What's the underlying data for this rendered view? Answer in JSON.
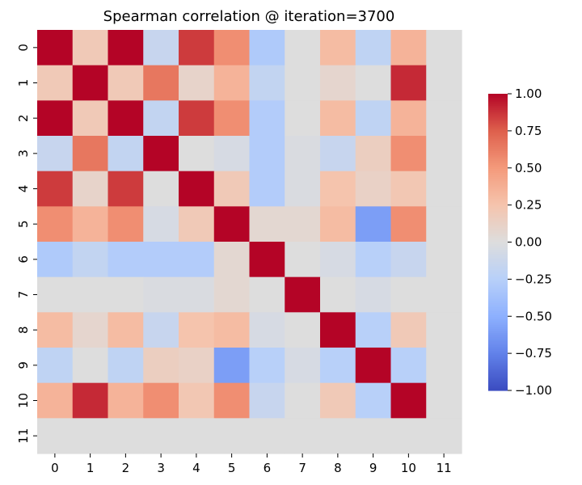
{
  "chart_data": {
    "type": "heatmap",
    "title": "Spearman correlation @ iteration=3700",
    "xlabel": "",
    "ylabel": "",
    "x_categories": [
      "0",
      "1",
      "2",
      "3",
      "4",
      "5",
      "6",
      "7",
      "8",
      "9",
      "10",
      "11"
    ],
    "y_categories": [
      "0",
      "1",
      "2",
      "3",
      "4",
      "5",
      "6",
      "7",
      "8",
      "9",
      "10",
      "11"
    ],
    "values": [
      [
        1.0,
        0.2,
        1.0,
        -0.15,
        0.85,
        0.55,
        -0.3,
        0.0,
        0.3,
        -0.2,
        0.35,
        null
      ],
      [
        0.2,
        1.0,
        0.2,
        0.65,
        0.1,
        0.35,
        -0.18,
        0.0,
        0.08,
        0.0,
        0.9,
        null
      ],
      [
        1.0,
        0.2,
        1.0,
        -0.18,
        0.85,
        0.55,
        -0.28,
        0.0,
        0.3,
        -0.2,
        0.35,
        null
      ],
      [
        -0.15,
        0.65,
        -0.18,
        1.0,
        0.0,
        -0.05,
        -0.28,
        -0.03,
        -0.15,
        0.15,
        0.55,
        null
      ],
      [
        0.85,
        0.1,
        0.85,
        0.0,
        1.0,
        0.2,
        -0.28,
        -0.03,
        0.25,
        0.12,
        0.22,
        null
      ],
      [
        0.55,
        0.35,
        0.55,
        -0.05,
        0.2,
        1.0,
        0.06,
        0.06,
        0.3,
        -0.6,
        0.55,
        null
      ],
      [
        -0.3,
        -0.18,
        -0.28,
        -0.28,
        -0.28,
        0.06,
        1.0,
        0.0,
        -0.05,
        -0.25,
        -0.15,
        null
      ],
      [
        0.0,
        0.0,
        0.0,
        -0.03,
        -0.03,
        0.06,
        0.0,
        1.0,
        0.0,
        -0.05,
        0.0,
        null
      ],
      [
        0.3,
        0.08,
        0.3,
        -0.15,
        0.25,
        0.3,
        -0.05,
        0.0,
        1.0,
        -0.25,
        0.2,
        null
      ],
      [
        -0.2,
        0.0,
        -0.2,
        0.15,
        0.12,
        -0.6,
        -0.25,
        -0.05,
        -0.25,
        1.0,
        -0.25,
        null
      ],
      [
        0.35,
        0.9,
        0.35,
        0.55,
        0.22,
        0.55,
        -0.15,
        0.0,
        0.2,
        -0.25,
        1.0,
        null
      ],
      [
        null,
        null,
        null,
        null,
        null,
        null,
        null,
        null,
        null,
        null,
        null,
        null
      ]
    ],
    "value_range": [
      -1.0,
      1.0
    ],
    "colormap": "coolwarm",
    "missing_color": "#dddddd",
    "colorbar_ticks": [
      "1.00",
      "0.75",
      "0.50",
      "0.25",
      "0.00",
      "−0.25",
      "−0.50",
      "−0.75",
      "−1.00"
    ],
    "colorbar_tick_values": [
      1.0,
      0.75,
      0.5,
      0.25,
      0.0,
      -0.25,
      -0.5,
      -0.75,
      -1.0
    ]
  }
}
